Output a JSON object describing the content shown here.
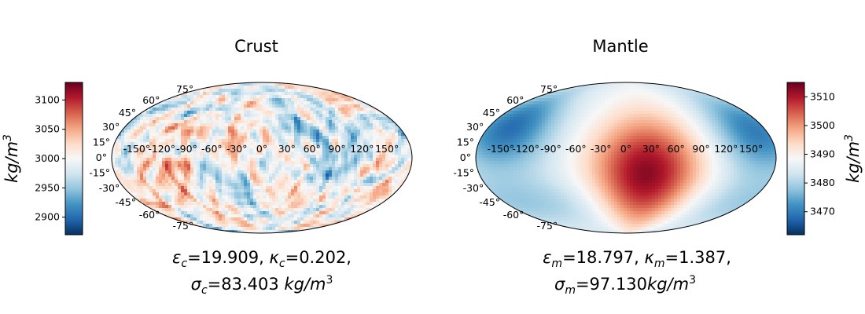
{
  "chart_data": [
    {
      "type": "heatmap",
      "projection": "mollweide",
      "title": "Crust",
      "lon_ticks": [
        "-150°",
        "-120°",
        "-90°",
        "-60°",
        "-30°",
        "0°",
        "30°",
        "60°",
        "90°",
        "120°",
        "150°"
      ],
      "lat_ticks": [
        "75°",
        "60°",
        "45°",
        "30°",
        "15°",
        "0°",
        "-15°",
        "-30°",
        "-45°",
        "-60°",
        "-75°"
      ],
      "colorbar": {
        "position": "left",
        "label": "kg/m",
        "label_exponent": "3",
        "ticks": [
          2900,
          2950,
          3000,
          3050,
          3100
        ],
        "range": [
          2870,
          3130
        ],
        "colormap": "blue-white-orange (RdBu reversed)"
      },
      "field": "small-scale random density anomalies",
      "caption": {
        "line1": [
          {
            "sym": "ε",
            "sub": "c",
            "val": "=19.909, "
          },
          {
            "sym": "κ",
            "sub": "c",
            "val": "=0.202,"
          }
        ],
        "line2": {
          "sym": "σ",
          "sub": "c",
          "val": "=83.403 ",
          "unit": "kg/m",
          "exp": "3"
        }
      }
    },
    {
      "type": "heatmap",
      "projection": "mollweide",
      "title": "Mantle",
      "lon_ticks": [
        "-150°",
        "-120°",
        "-90°",
        "-60°",
        "-30°",
        "0°",
        "30°",
        "60°",
        "90°",
        "120°",
        "150°"
      ],
      "lat_ticks": [
        "75°",
        "60°",
        "45°",
        "30°",
        "15°",
        "0°",
        "-15°",
        "-30°",
        "-45°",
        "-60°",
        "-75°"
      ],
      "colorbar": {
        "position": "right",
        "label": "kg/m",
        "label_exponent": "3",
        "ticks": [
          3470,
          3480,
          3490,
          3500,
          3510
        ],
        "range": [
          3462,
          3515
        ],
        "colormap": "blue-white-orange (RdBu reversed)"
      },
      "field": "large-scale anomaly: dense center near 30°E, -15°, light at ±150° near 30°N",
      "caption": {
        "line1": [
          {
            "sym": "ε",
            "sub": "m",
            "val": "=18.797, "
          },
          {
            "sym": "κ",
            "sub": "m",
            "val": "=1.387,"
          }
        ],
        "line2": {
          "sym": "σ",
          "sub": "m",
          "val": "=97.130",
          "unit": "kg/m",
          "exp": "3"
        }
      }
    }
  ],
  "colors": {
    "cmap": [
      "#053061",
      "#2166ac",
      "#4393c3",
      "#92c5de",
      "#d1e5f0",
      "#f7f7f7",
      "#fddbc7",
      "#f4a582",
      "#d6604d",
      "#b2182b",
      "#67001f"
    ]
  }
}
